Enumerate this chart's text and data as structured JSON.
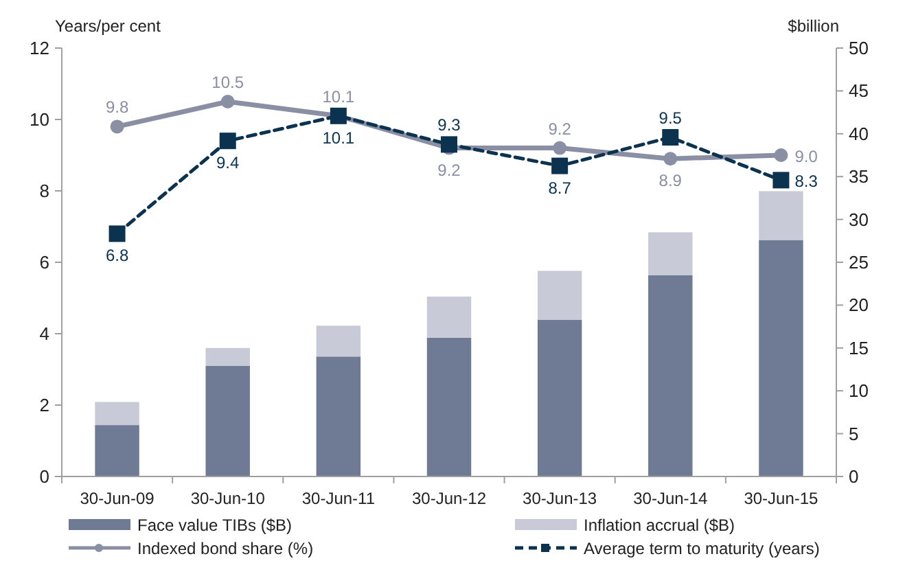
{
  "chart_data": {
    "type": "bar",
    "ylabel": "Years/per cent",
    "y2label": "$billion",
    "categories": [
      "30-Jun-09",
      "30-Jun-10",
      "30-Jun-11",
      "30-Jun-12",
      "30-Jun-13",
      "30-Jun-14",
      "30-Jun-15"
    ],
    "stacked": true,
    "legend": "bottom",
    "grid": false,
    "ylim": [
      0,
      12
    ],
    "yticks": [
      0,
      2,
      4,
      6,
      8,
      10,
      12
    ],
    "y2lim": [
      0,
      50
    ],
    "y2ticks": [
      0,
      5,
      10,
      15,
      20,
      25,
      30,
      35,
      40,
      45,
      50
    ],
    "series": [
      {
        "name": "Face value TIBs ($B)",
        "axis": "y2",
        "color": "#6f7a94",
        "values": [
          6.0,
          12.9,
          14.0,
          16.2,
          18.3,
          23.5,
          27.6
        ]
      },
      {
        "name": "Inflation accrual ($B)",
        "axis": "y2",
        "color": "#c9cad8",
        "values": [
          2.7,
          2.1,
          3.6,
          4.8,
          5.7,
          5.0,
          5.7
        ]
      },
      {
        "name": "Indexed bond share (%)",
        "type": "line",
        "axis": "y",
        "color": "#8a8fa3",
        "marker": "circle",
        "line_style": "solid",
        "values": [
          9.8,
          10.5,
          10.1,
          9.2,
          9.2,
          8.9,
          9.0
        ],
        "value_labels": [
          "9.8",
          "10.5",
          "10.1",
          "9.2",
          "9.2",
          "8.9",
          "9.0"
        ]
      },
      {
        "name": "Average term to maturity (years)",
        "type": "line",
        "axis": "y",
        "color": "#0b3350",
        "marker": "square",
        "line_style": "dashed",
        "values": [
          6.8,
          9.4,
          10.1,
          9.3,
          8.7,
          9.5,
          8.3
        ],
        "value_labels": [
          "6.8",
          "9.4",
          "10.1",
          "9.3",
          "8.7",
          "9.5",
          "8.3"
        ]
      }
    ]
  }
}
